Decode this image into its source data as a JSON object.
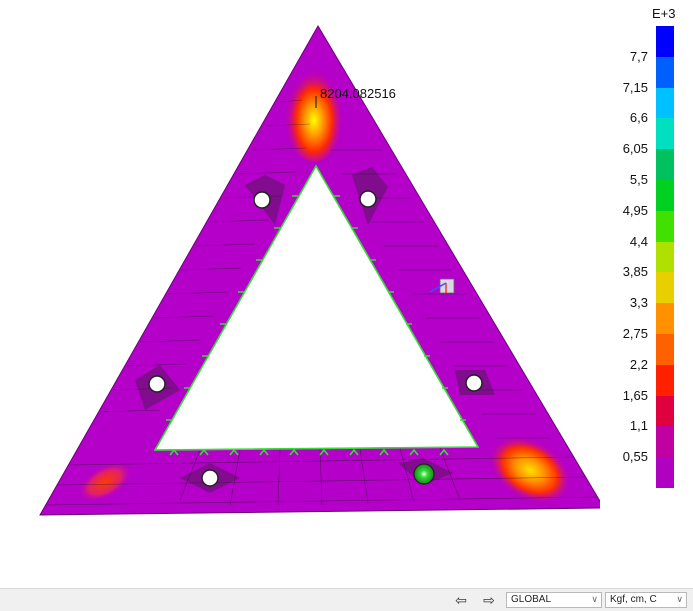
{
  "viewport": {
    "annotation": "8204.082516"
  },
  "legend": {
    "exponent": "E+3",
    "labels": [
      "7,7",
      "7,15",
      "6,6",
      "6,05",
      "5,5",
      "4,95",
      "4,4",
      "3,85",
      "3,3",
      "2,75",
      "2,2",
      "1,65",
      "1,1",
      "0,55"
    ],
    "colors": [
      "#0000ff",
      "#0060ff",
      "#00c0ff",
      "#00e0c0",
      "#00c060",
      "#00d020",
      "#40e000",
      "#b0e000",
      "#e8d000",
      "#ff9000",
      "#ff6000",
      "#ff2000",
      "#e00040",
      "#c000a0",
      "#b000c0"
    ]
  },
  "statusbar": {
    "back_icon": "arrow-left-icon",
    "forward_icon": "arrow-right-icon",
    "coord_system": "GLOBAL",
    "units": "Kgf, cm, C"
  },
  "colors": {
    "plate": "#b400c8",
    "support": "#33dd33",
    "hot": "#ff3b00",
    "warm": "#ffa500"
  }
}
